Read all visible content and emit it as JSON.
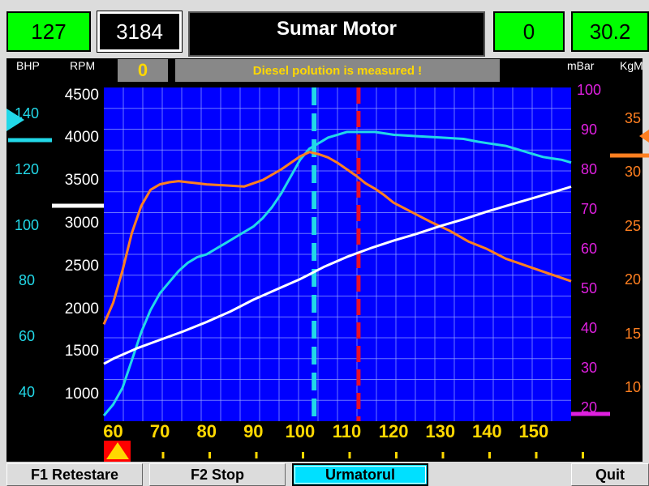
{
  "header": {
    "bhp_value": "127",
    "rpm_value": "3184",
    "title": "Sumar Motor",
    "mbar_value": "0",
    "kgm_value": "30.2"
  },
  "axis_labels": {
    "bhp": "BHP",
    "rpm": "RPM",
    "mbar": "mBar",
    "kgm": "KgM"
  },
  "status": {
    "counter": "0",
    "message": "Diesel polution is measured !"
  },
  "chart_data": {
    "type": "line",
    "x_ticks": [
      60,
      70,
      80,
      90,
      100,
      110,
      120,
      130,
      140,
      150
    ],
    "xlim": [
      58,
      158
    ],
    "rpm_ticks": [
      4500,
      4000,
      3500,
      3000,
      2500,
      2000,
      1500,
      1000
    ],
    "rpm_lim": [
      700,
      4600
    ],
    "bhp_ticks": [
      140,
      120,
      100,
      80,
      60,
      40
    ],
    "bhp_lim": [
      30,
      150
    ],
    "mbar_ticks": [
      100,
      90,
      80,
      70,
      60,
      50,
      40,
      30,
      20
    ],
    "mbar_lim": [
      17,
      101
    ],
    "kgm_ticks": [
      35,
      30,
      25,
      20,
      15,
      10
    ],
    "kgm_lim": [
      7,
      38
    ],
    "grid": true,
    "colors": {
      "bhp": "#22d8e8",
      "kgm": "#ff7f20",
      "rpm": "#ffffff",
      "mbar": "#e020e0",
      "plot_bg": "#0000ff",
      "max_bhp_marker": "#22d8e8",
      "max_kgm_marker": "#e8102a"
    },
    "markers": {
      "max_bhp_x": 103,
      "max_kgm_x": 112.5
    },
    "series": [
      {
        "axis": "bhp",
        "color": "#22d8e8",
        "x": [
          58,
          60,
          62,
          64,
          66,
          68,
          70,
          72,
          74,
          76,
          78,
          80,
          82,
          84,
          86,
          88,
          90,
          92,
          94,
          96,
          98,
          100,
          102,
          104,
          106,
          108,
          110,
          112,
          114,
          116,
          118,
          120,
          125,
          130,
          135,
          138,
          140,
          142,
          144,
          146,
          148,
          150,
          152,
          154,
          156,
          158
        ],
        "y": [
          32,
          36,
          42,
          52,
          62,
          70,
          76,
          80,
          84,
          87,
          89,
          90,
          92,
          94,
          96,
          98,
          100,
          103,
          107,
          112,
          118,
          124,
          128,
          130,
          132,
          133,
          134,
          134,
          134,
          134,
          133.5,
          133,
          132.5,
          132,
          131.5,
          130.5,
          130,
          129.5,
          129,
          128,
          127,
          126,
          125,
          124.5,
          124,
          123
        ]
      },
      {
        "axis": "kgm",
        "color": "#ff7f20",
        "x": [
          58,
          60,
          62,
          64,
          66,
          68,
          70,
          72,
          74,
          76,
          78,
          80,
          84,
          88,
          92,
          96,
          100,
          102,
          104,
          106,
          108,
          110,
          112,
          114,
          116,
          118,
          120,
          124,
          128,
          132,
          136,
          140,
          144,
          148,
          152,
          156,
          158
        ],
        "y": [
          16,
          18,
          21,
          24.5,
          27,
          28.5,
          29,
          29.2,
          29.3,
          29.2,
          29.1,
          29,
          28.9,
          28.8,
          29.4,
          30.4,
          31.6,
          32,
          31.8,
          31.5,
          31,
          30.4,
          29.8,
          29.1,
          28.6,
          28,
          27.3,
          26.4,
          25.5,
          24.7,
          23.7,
          23,
          22.1,
          21.5,
          20.9,
          20.3,
          20
        ]
      },
      {
        "axis": "rpm",
        "color": "#ffffff",
        "x": [
          58,
          60,
          65,
          70,
          75,
          80,
          85,
          90,
          95,
          100,
          105,
          110,
          115,
          120,
          125,
          130,
          135,
          140,
          145,
          150,
          155,
          158
        ],
        "y": [
          1370,
          1430,
          1550,
          1650,
          1750,
          1860,
          1980,
          2120,
          2240,
          2360,
          2500,
          2620,
          2720,
          2810,
          2890,
          2980,
          3060,
          3150,
          3230,
          3310,
          3390,
          3440
        ]
      }
    ]
  },
  "buttons": {
    "restart": "F1 Retestare",
    "stop": "F2 Stop",
    "next": "Urmatorul",
    "quit": "Quit"
  }
}
